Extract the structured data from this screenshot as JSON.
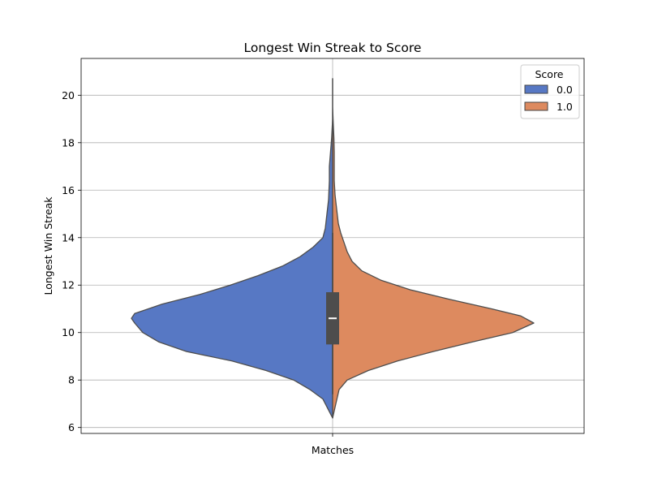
{
  "chart_data": {
    "type": "violin",
    "title": "Longest Win Streak to Score",
    "xlabel": "",
    "ylabel": "Longest Win Streak",
    "categories": [
      "Matches"
    ],
    "ylim": [
      5.75,
      21.55
    ],
    "yticks": [
      6,
      8,
      10,
      12,
      14,
      16,
      18,
      20
    ],
    "ytick_labels": [
      "6",
      "8",
      "10",
      "12",
      "14",
      "16",
      "18",
      "20"
    ],
    "grid": true,
    "split": true,
    "legend": {
      "title": "Score",
      "position": "top-right"
    },
    "series": [
      {
        "name": "0.0",
        "color": "#5778c4",
        "side": "left",
        "density_profile": [
          [
            6.4,
            0.0
          ],
          [
            6.8,
            0.03
          ],
          [
            7.2,
            0.06
          ],
          [
            7.6,
            0.14
          ],
          [
            8.0,
            0.24
          ],
          [
            8.4,
            0.41
          ],
          [
            8.8,
            0.62
          ],
          [
            9.2,
            0.9
          ],
          [
            9.6,
            1.07
          ],
          [
            10.0,
            1.17
          ],
          [
            10.4,
            1.22
          ],
          [
            10.6,
            1.24
          ],
          [
            10.8,
            1.22
          ],
          [
            11.2,
            1.05
          ],
          [
            11.6,
            0.82
          ],
          [
            12.0,
            0.63
          ],
          [
            12.4,
            0.46
          ],
          [
            12.8,
            0.31
          ],
          [
            13.2,
            0.2
          ],
          [
            13.6,
            0.12
          ],
          [
            14.0,
            0.06
          ],
          [
            14.4,
            0.045
          ],
          [
            15.0,
            0.035
          ],
          [
            15.6,
            0.025
          ],
          [
            16.4,
            0.02
          ],
          [
            17.0,
            0.02
          ],
          [
            17.6,
            0.013
          ],
          [
            18.2,
            0.006
          ],
          [
            19.0,
            0.0
          ],
          [
            20.7,
            0.0
          ]
        ]
      },
      {
        "name": "1.0",
        "color": "#dd8a5f",
        "side": "right",
        "density_profile": [
          [
            6.4,
            0.0
          ],
          [
            7.0,
            0.02
          ],
          [
            7.6,
            0.04
          ],
          [
            8.0,
            0.09
          ],
          [
            8.4,
            0.22
          ],
          [
            8.8,
            0.4
          ],
          [
            9.2,
            0.62
          ],
          [
            9.6,
            0.86
          ],
          [
            10.0,
            1.11
          ],
          [
            10.4,
            1.24
          ],
          [
            10.7,
            1.16
          ],
          [
            11.0,
            0.98
          ],
          [
            11.4,
            0.72
          ],
          [
            11.8,
            0.48
          ],
          [
            12.2,
            0.3
          ],
          [
            12.6,
            0.18
          ],
          [
            13.0,
            0.12
          ],
          [
            13.4,
            0.09
          ],
          [
            13.8,
            0.07
          ],
          [
            14.2,
            0.05
          ],
          [
            14.6,
            0.035
          ],
          [
            15.2,
            0.025
          ],
          [
            15.8,
            0.015
          ],
          [
            16.4,
            0.01
          ],
          [
            17.0,
            0.01
          ],
          [
            17.6,
            0.01
          ],
          [
            18.2,
            0.008
          ],
          [
            18.8,
            0.004
          ],
          [
            19.5,
            0.0
          ],
          [
            20.7,
            0.0
          ]
        ]
      }
    ],
    "box": {
      "q1": 9.5,
      "median": 10.6,
      "q3": 11.7,
      "whisker_low": 7.4,
      "whisker_high": 14.2
    }
  }
}
